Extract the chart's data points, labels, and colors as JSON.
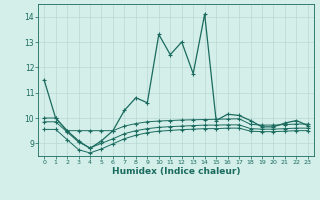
{
  "xlabel": "Humidex (Indice chaleur)",
  "bg_color": "#d4eeea",
  "grid_color": "#b8d8d4",
  "line_color": "#1a6b5e",
  "xlim": [
    -0.5,
    23.5
  ],
  "ylim": [
    8.5,
    14.5
  ],
  "yticks": [
    9,
    10,
    11,
    12,
    13,
    14
  ],
  "xticks": [
    0,
    1,
    2,
    3,
    4,
    5,
    6,
    7,
    8,
    9,
    10,
    11,
    12,
    13,
    14,
    15,
    16,
    17,
    18,
    19,
    20,
    21,
    22,
    23
  ],
  "main_x": [
    0,
    1,
    2,
    3,
    4,
    5,
    6,
    7,
    8,
    9,
    10,
    11,
    12,
    13,
    14,
    15,
    16,
    17,
    18,
    19,
    20,
    21,
    22,
    23
  ],
  "main_y": [
    11.5,
    10.0,
    9.5,
    9.1,
    8.8,
    9.1,
    9.5,
    10.3,
    10.8,
    10.6,
    13.3,
    12.5,
    13.0,
    11.75,
    14.1,
    9.9,
    10.15,
    10.1,
    9.9,
    9.65,
    9.65,
    9.8,
    9.9,
    9.7
  ],
  "line2_x": [
    0,
    1,
    2,
    3,
    4,
    5,
    6,
    7,
    8,
    9,
    10,
    11,
    12,
    13,
    14,
    15,
    16,
    17,
    18,
    19,
    20,
    21,
    22,
    23
  ],
  "line2_y": [
    10.0,
    10.0,
    9.5,
    9.5,
    9.5,
    9.5,
    9.5,
    9.68,
    9.78,
    9.85,
    9.88,
    9.9,
    9.92,
    9.93,
    9.94,
    9.95,
    9.96,
    9.97,
    9.75,
    9.72,
    9.72,
    9.74,
    9.76,
    9.76
  ],
  "line3_x": [
    0,
    1,
    2,
    3,
    4,
    5,
    6,
    7,
    8,
    9,
    10,
    11,
    12,
    13,
    14,
    15,
    16,
    17,
    18,
    19,
    20,
    21,
    22,
    23
  ],
  "line3_y": [
    9.85,
    9.85,
    9.45,
    9.05,
    8.82,
    9.0,
    9.18,
    9.38,
    9.5,
    9.58,
    9.63,
    9.66,
    9.68,
    9.7,
    9.72,
    9.72,
    9.73,
    9.73,
    9.58,
    9.56,
    9.56,
    9.58,
    9.6,
    9.6
  ],
  "line4_x": [
    0,
    1,
    2,
    3,
    4,
    5,
    6,
    7,
    8,
    9,
    10,
    11,
    12,
    13,
    14,
    15,
    16,
    17,
    18,
    19,
    20,
    21,
    22,
    23
  ],
  "line4_y": [
    9.55,
    9.55,
    9.15,
    8.75,
    8.62,
    8.78,
    8.98,
    9.18,
    9.32,
    9.42,
    9.48,
    9.51,
    9.54,
    9.56,
    9.58,
    9.58,
    9.6,
    9.6,
    9.48,
    9.46,
    9.46,
    9.48,
    9.5,
    9.5
  ]
}
